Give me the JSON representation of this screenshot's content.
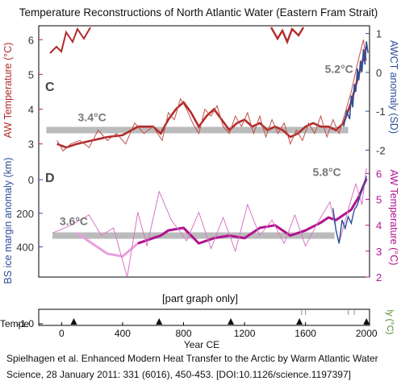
{
  "title": "Temperature Reconstructions of North Atlantic Water (Eastern Fram Strait)",
  "note": "[part graph only]",
  "citation": {
    "line1": "Spielhagen et al. Enhanced Modern Heat Transfer to the Arctic by Warm Atlantic Water",
    "line2": "Science,  28 January 2011:  331 (6016), 450-453.  [DOI:10.1126/science.1197397]"
  },
  "colors": {
    "aw_red": "#b22a2a",
    "aw_red_thin": "#c0504d",
    "magenta": "#b0138f",
    "magenta_light": "#e9a0dc",
    "blue": "#2b4e9a",
    "gray_band": "#bbbbbb",
    "annotation_gray": "#777777"
  },
  "chart_data": [
    {
      "type": "line",
      "panel_label": "C",
      "ylabel_left": "AW Temperature (°C)",
      "ylabel_right": "AWCT anomaly (SD)",
      "yticks_left": [
        "3",
        "4",
        "5",
        "6"
      ],
      "yticks_right": [
        "1",
        "0",
        "-1",
        "-2"
      ],
      "ylim_left": [
        2.6,
        6.4
      ],
      "ylim_right": [
        -2.2,
        1.2
      ],
      "xlim": [
        -150,
        2020
      ],
      "annotations": [
        {
          "text": "3.4°C",
          "x": 200,
          "y": 3.65
        },
        {
          "text": "5.2°C",
          "x": 1820,
          "y": 5.05
        }
      ],
      "mean_band": {
        "y": 3.4,
        "x_start": -100,
        "x_end": 1880
      },
      "series": [
        {
          "role": "aw_temperature_smoothed",
          "x": [
            -30,
            30,
            100,
            200,
            300,
            400,
            500,
            600,
            650,
            700,
            750,
            800,
            850,
            900,
            950,
            1000,
            1050,
            1100,
            1150,
            1200,
            1250,
            1300,
            1350,
            1400,
            1450,
            1500,
            1550,
            1600,
            1650,
            1700,
            1750,
            1800,
            1850,
            1900,
            1950,
            2000
          ],
          "values": [
            3.0,
            2.9,
            3.0,
            3.1,
            3.2,
            3.25,
            3.5,
            3.5,
            3.3,
            3.7,
            4.0,
            4.2,
            3.9,
            3.5,
            3.8,
            4.0,
            3.7,
            3.4,
            3.6,
            3.7,
            3.5,
            3.6,
            3.4,
            3.5,
            3.4,
            3.2,
            3.3,
            3.5,
            3.6,
            3.5,
            3.5,
            3.4,
            3.6,
            4.2,
            5.0,
            5.8
          ]
        },
        {
          "role": "aw_temperature_raw",
          "x": [
            -30,
            10,
            60,
            120,
            180,
            240,
            300,
            360,
            420,
            480,
            540,
            600,
            660,
            700,
            740,
            780,
            820,
            860,
            900,
            940,
            980,
            1020,
            1060,
            1100,
            1140,
            1180,
            1220,
            1260,
            1300,
            1340,
            1380,
            1420,
            1460,
            1500,
            1540,
            1580,
            1620,
            1660,
            1700,
            1740,
            1780,
            1820,
            1860,
            1900,
            1940,
            1980,
            2000
          ],
          "values": [
            3.1,
            2.8,
            3.0,
            3.1,
            2.9,
            3.4,
            3.1,
            3.3,
            3.0,
            3.6,
            3.3,
            3.5,
            3.1,
            3.9,
            3.7,
            4.3,
            4.0,
            3.6,
            3.3,
            4.0,
            3.8,
            4.1,
            3.5,
            3.3,
            3.8,
            3.5,
            3.9,
            3.3,
            3.8,
            3.2,
            3.7,
            3.3,
            3.6,
            3.0,
            3.4,
            3.1,
            3.6,
            3.3,
            3.8,
            3.2,
            3.7,
            3.3,
            3.9,
            4.5,
            5.3,
            6.0,
            5.4
          ]
        },
        {
          "role": "awct_anomaly",
          "axis": "right",
          "x": [
            1850,
            1870,
            1890,
            1900,
            1910,
            1920,
            1930,
            1940,
            1950,
            1960,
            1970,
            1980,
            1990,
            2000,
            2010
          ],
          "values": [
            -1.4,
            -1.0,
            -1.2,
            -0.6,
            -0.9,
            -0.3,
            -0.5,
            0.1,
            -0.2,
            0.3,
            0.0,
            0.6,
            0.2,
            0.8,
            0.5
          ]
        }
      ]
    },
    {
      "type": "line",
      "panel_label": "D",
      "ylabel_left": "BS ice margin anomaly (km)",
      "ylabel_right": "AW Temperature (°C)",
      "yticks_left": [
        "0",
        "200",
        "400"
      ],
      "yticks_right": [
        "6",
        "5",
        "4",
        "3",
        "2"
      ],
      "ylim_left": [
        -130,
        580
      ],
      "ylim_right": [
        2.0,
        6.6
      ],
      "xlim": [
        -150,
        2020
      ],
      "annotations": [
        {
          "text": "3.6°C",
          "x": 80,
          "y": 4.0
        },
        {
          "text": "5.8°C",
          "x": 1740,
          "y": 5.9
        }
      ],
      "mean_band": {
        "y": 3.6,
        "x_start": -60,
        "x_end": 1790
      },
      "series": [
        {
          "role": "aw_temperature_smoothed",
          "x": [
            100,
            200,
            300,
            400,
            500,
            600,
            650,
            700,
            800,
            900,
            1000,
            1100,
            1200,
            1300,
            1400,
            1500,
            1600,
            1700,
            1750,
            1800,
            1850,
            1900,
            1950,
            2000
          ],
          "values": [
            3.7,
            3.3,
            2.9,
            2.8,
            3.3,
            3.5,
            3.6,
            3.8,
            3.9,
            3.3,
            3.5,
            3.6,
            3.5,
            3.9,
            4.0,
            3.6,
            3.8,
            4.1,
            4.3,
            4.2,
            4.4,
            4.6,
            5.1,
            5.8
          ]
        },
        {
          "role": "aw_temperature_raw",
          "x": [
            -60,
            60,
            180,
            260,
            340,
            430,
            500,
            560,
            640,
            720,
            820,
            900,
            980,
            1060,
            1140,
            1220,
            1300,
            1380,
            1460,
            1530,
            1600,
            1680,
            1760,
            1820,
            1880,
            1930,
            1970,
            2000
          ],
          "values": [
            3.7,
            4.0,
            4.4,
            3.6,
            3.9,
            2.0,
            4.5,
            3.2,
            5.3,
            4.2,
            3.4,
            4.5,
            3.1,
            4.3,
            3.0,
            4.8,
            3.6,
            4.2,
            3.3,
            4.4,
            3.2,
            4.1,
            4.9,
            3.3,
            4.6,
            5.6,
            4.8,
            6.2
          ]
        },
        {
          "role": "ice_margin_anomaly",
          "axis": "left",
          "x": [
            1780,
            1800,
            1820,
            1840,
            1860,
            1880,
            1900,
            1920,
            1940,
            1960,
            1980,
            2000
          ],
          "values": [
            170,
            300,
            380,
            240,
            290,
            220,
            260,
            180,
            150,
            90,
            40,
            -20
          ]
        }
      ]
    },
    {
      "type": "line",
      "panel_label": "",
      "ylabel_left": "Tempe",
      "ylabel_right": "ly (°C)",
      "yticks_left": [
        "-1.0"
      ],
      "xlabel": "Year CE",
      "xticks": [
        "0",
        "400",
        "800",
        "1200",
        "1600",
        "2000"
      ],
      "xtick_values": [
        0,
        400,
        800,
        1200,
        1600,
        2000
      ],
      "xlim": [
        -150,
        2020
      ],
      "markers": [
        80,
        640,
        1110,
        1560,
        2000
      ]
    }
  ]
}
